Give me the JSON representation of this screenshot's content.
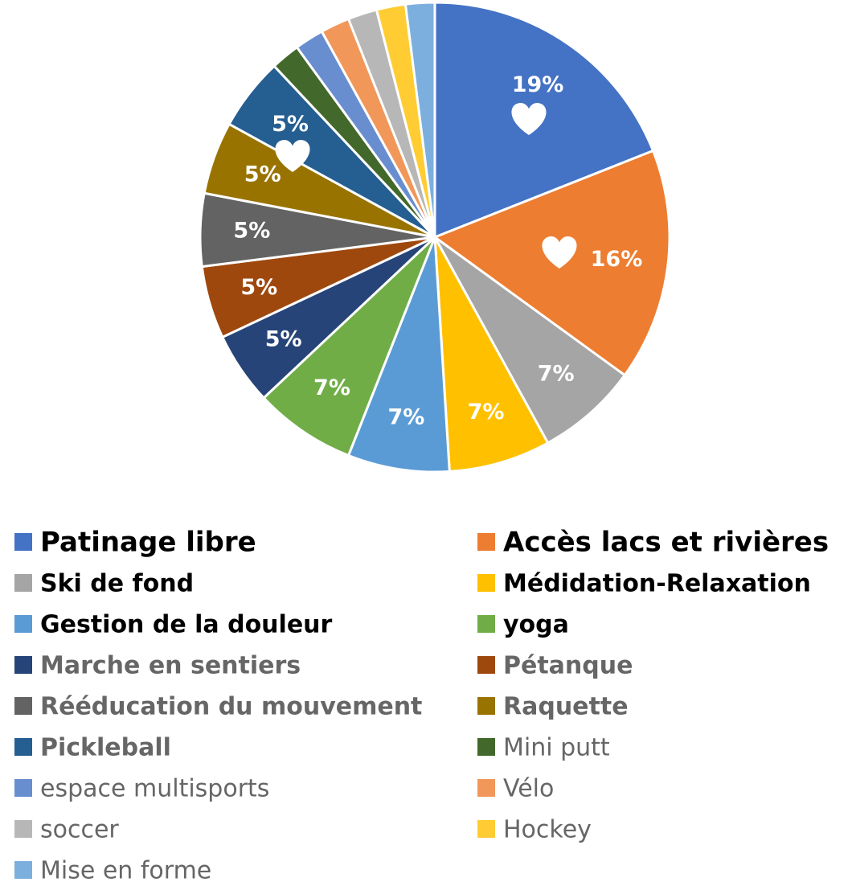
{
  "chart_data": {
    "type": "pie",
    "categories": [
      "Patinage libre",
      "Accès lacs et rivières",
      "Ski de fond",
      "Médidation-Relaxation",
      "Gestion de la douleur",
      "yoga",
      "Marche en sentiers",
      "Pétanque",
      "Rééducation du mouvement",
      "Raquette",
      "Pickleball",
      "Mini putt",
      "espace multisports",
      "Vélo",
      "soccer",
      "Hockey",
      "Mise en forme"
    ],
    "values": [
      19,
      16,
      7,
      7,
      7,
      7,
      5,
      5,
      5,
      5,
      5,
      2,
      2,
      2,
      2,
      2,
      2
    ],
    "value_labels": [
      "19%",
      "16%",
      "7%",
      "7%",
      "7%",
      "7%",
      "5%",
      "5%",
      "5%",
      "5%",
      "5%",
      null,
      null,
      null,
      null,
      null,
      null
    ],
    "colors": [
      "#4472c4",
      "#ed7d31",
      "#a5a5a5",
      "#ffc000",
      "#5b9bd5",
      "#70ad47",
      "#264478",
      "#9e480e",
      "#636363",
      "#997300",
      "#255e91",
      "#43682b",
      "#698ed0",
      "#f1975a",
      "#b7b7b7",
      "#ffcd33",
      "#7cafdd"
    ],
    "legend": "bottom"
  }
}
